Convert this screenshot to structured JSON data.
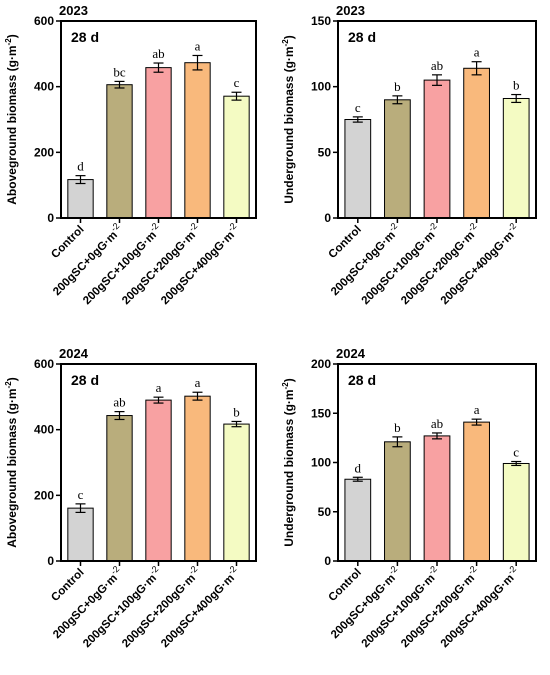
{
  "colors": [
    "#d3d3d3",
    "#b9ad7c",
    "#f8a1a2",
    "#f9b97c",
    "#f4fbc3"
  ],
  "chart_data": [
    {
      "type": "bar",
      "year": "2023",
      "inset": "28 d",
      "ylabel": "Aboveground biomass (g·m-2)",
      "ylabel_main": "Aboveground biomass (g·m",
      "ylabel_sup": "-2",
      "ylabel_end": ")",
      "ylim": [
        0,
        600
      ],
      "yticks": [
        0,
        200,
        400,
        600
      ],
      "categories": [
        "Control",
        "200gSC+0gG·m",
        "200gSC+100gG·m",
        "200gSC+200gG·m",
        "200gSC+400gG·m"
      ],
      "category_sup": [
        "",
        "-2",
        "-2",
        "-2",
        "-2"
      ],
      "values": [
        117,
        406,
        458,
        473,
        371
      ],
      "errors": [
        12,
        10,
        14,
        22,
        12
      ],
      "significance": [
        "d",
        "bc",
        "ab",
        "a",
        "c"
      ]
    },
    {
      "type": "bar",
      "year": "2023",
      "inset": "28 d",
      "ylabel": "Underground biomass (g·m-2)",
      "ylabel_main": "Underground biomass (g·m",
      "ylabel_sup": "-2",
      "ylabel_end": ")",
      "ylim": [
        0,
        150
      ],
      "yticks": [
        0,
        50,
        100,
        150
      ],
      "categories": [
        "Control",
        "200gSC+0gG·m",
        "200gSC+100gG·m",
        "200gSC+200gG·m",
        "200gSC+400gG·m"
      ],
      "category_sup": [
        "",
        "-2",
        "-2",
        "-2",
        "-2"
      ],
      "values": [
        75,
        90,
        105,
        114,
        91
      ],
      "errors": [
        2,
        3,
        4,
        5,
        3
      ],
      "significance": [
        "c",
        "b",
        "ab",
        "a",
        "b"
      ]
    },
    {
      "type": "bar",
      "year": "2024",
      "inset": "28 d",
      "ylabel": "Aboveground biomass (g·m-2)",
      "ylabel_main": "Aboveground biomass (g·m",
      "ylabel_sup": "-2",
      "ylabel_end": ")",
      "ylim": [
        0,
        600
      ],
      "yticks": [
        0,
        200,
        400,
        600
      ],
      "categories": [
        "Control",
        "200gSC+0gG·m",
        "200gSC+100gG·m",
        "200gSC+200gG·m",
        "200gSC+400gG·m"
      ],
      "category_sup": [
        "",
        "-2",
        "-2",
        "-2",
        "-2"
      ],
      "values": [
        161,
        443,
        490,
        502,
        417
      ],
      "errors": [
        13,
        12,
        9,
        12,
        8
      ],
      "significance": [
        "c",
        "ab",
        "a",
        "a",
        "b"
      ]
    },
    {
      "type": "bar",
      "year": "2024",
      "inset": "28 d",
      "ylabel": "Underground biomass (g·m-2)",
      "ylabel_main": "Underground biomass (g·m",
      "ylabel_sup": "-2",
      "ylabel_end": ")",
      "ylim": [
        0,
        200
      ],
      "yticks": [
        0,
        50,
        100,
        150,
        200
      ],
      "categories": [
        "Control",
        "200gSC+0gG·m",
        "200gSC+100gG·m",
        "200gSC+200gG·m",
        "200gSC+400gG·m"
      ],
      "category_sup": [
        "",
        "-2",
        "-2",
        "-2",
        "-2"
      ],
      "values": [
        83,
        121,
        127,
        141,
        99
      ],
      "errors": [
        2,
        5,
        3,
        3,
        2
      ],
      "significance": [
        "d",
        "b",
        "ab",
        "a",
        "c"
      ]
    }
  ]
}
